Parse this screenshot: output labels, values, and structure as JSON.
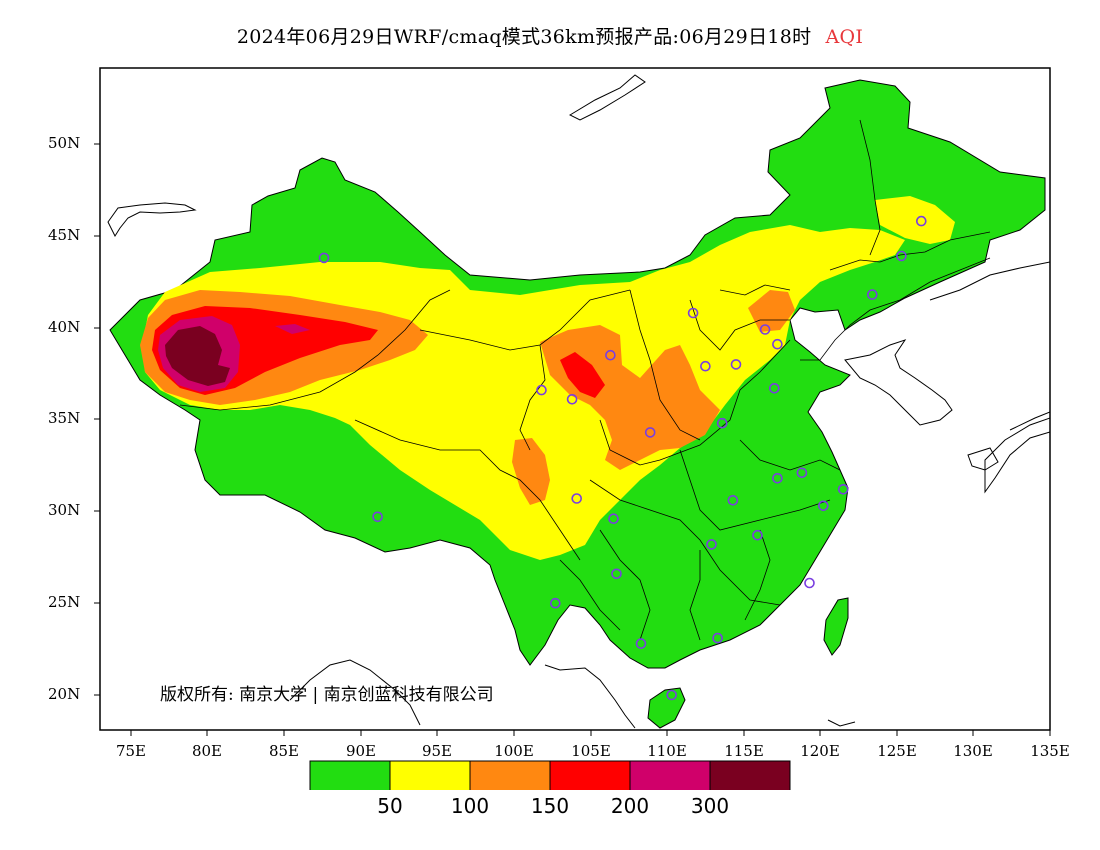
{
  "title": {
    "main": "2024年06月29日WRF/cmaq模式36km预报产品:06月29日18时",
    "variable": "AQI"
  },
  "axes": {
    "y_ticks": [
      "50N",
      "45N",
      "40N",
      "35N",
      "30N",
      "25N",
      "20N"
    ],
    "x_ticks": [
      "75E",
      "80E",
      "85E",
      "90E",
      "95E",
      "100E",
      "105E",
      "110E",
      "115E",
      "120E",
      "125E",
      "130E",
      "135E"
    ]
  },
  "legend": {
    "colors": [
      "#22dd11",
      "#ffff00",
      "#ff8811",
      "#ff0000",
      "#d0006a",
      "#7a0020"
    ],
    "labels": [
      "50",
      "100",
      "150",
      "200",
      "300"
    ]
  },
  "copyright": "版权所有: 南京大学 | 南京创蓝科技有限公司",
  "map_extent": {
    "lon": [
      73,
      135
    ],
    "lat": [
      18,
      54
    ]
  },
  "stations": [
    [
      87.6,
      43.8
    ],
    [
      91.1,
      29.7
    ],
    [
      101.8,
      36.6
    ],
    [
      103.8,
      36.1
    ],
    [
      106.3,
      38.5
    ],
    [
      108.9,
      34.3
    ],
    [
      104.1,
      30.7
    ],
    [
      106.5,
      29.6
    ],
    [
      106.7,
      26.6
    ],
    [
      102.7,
      25.0
    ],
    [
      108.3,
      22.8
    ],
    [
      110.3,
      20.0
    ],
    [
      113.3,
      23.1
    ],
    [
      112.9,
      28.2
    ],
    [
      115.9,
      28.7
    ],
    [
      114.3,
      30.6
    ],
    [
      117.2,
      31.8
    ],
    [
      118.8,
      32.1
    ],
    [
      120.2,
      30.3
    ],
    [
      121.5,
      31.2
    ],
    [
      119.3,
      26.1
    ],
    [
      113.6,
      34.8
    ],
    [
      117.0,
      36.7
    ],
    [
      112.5,
      37.9
    ],
    [
      114.5,
      38.0
    ],
    [
      111.7,
      40.8
    ],
    [
      116.4,
      39.9
    ],
    [
      117.2,
      39.1
    ],
    [
      123.4,
      41.8
    ],
    [
      125.3,
      43.9
    ],
    [
      126.6,
      45.8
    ]
  ]
}
